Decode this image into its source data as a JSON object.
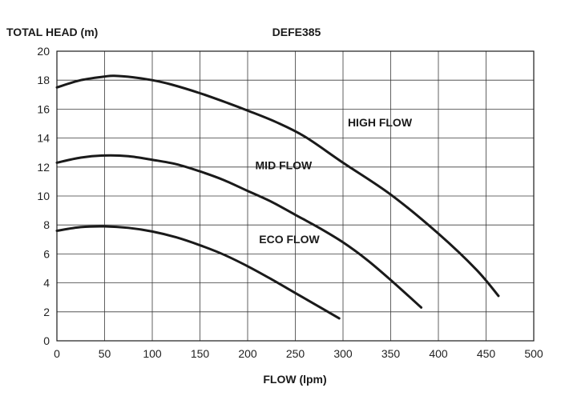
{
  "chart_data": {
    "type": "line",
    "title": "DEFE385",
    "xlabel": "FLOW (lpm)",
    "ylabel": "TOTAL HEAD (m)",
    "xlim": [
      0,
      500
    ],
    "ylim": [
      0,
      20
    ],
    "xticks": [
      0,
      50,
      100,
      150,
      200,
      250,
      300,
      350,
      400,
      450,
      500
    ],
    "yticks": [
      0,
      2,
      4,
      6,
      8,
      10,
      12,
      14,
      16,
      18,
      20
    ],
    "grid": true,
    "colors": {
      "curve": "#1a1a1a",
      "grid": "#3a3a3a"
    },
    "series": [
      {
        "name": "HIGH FLOW",
        "x": [
          0,
          25,
          50,
          60,
          80,
          100,
          120,
          150,
          180,
          200,
          230,
          260,
          300,
          350,
          400,
          440,
          463
        ],
        "y": [
          17.5,
          18.0,
          18.25,
          18.3,
          18.2,
          18.0,
          17.7,
          17.1,
          16.4,
          15.9,
          15.1,
          14.1,
          12.3,
          10.1,
          7.4,
          4.9,
          3.1
        ]
      },
      {
        "name": "MID FLOW",
        "x": [
          0,
          25,
          50,
          75,
          100,
          125,
          150,
          175,
          200,
          225,
          250,
          275,
          300,
          325,
          350,
          382
        ],
        "y": [
          12.3,
          12.65,
          12.8,
          12.75,
          12.5,
          12.2,
          11.7,
          11.1,
          10.35,
          9.6,
          8.7,
          7.8,
          6.8,
          5.6,
          4.2,
          2.3
        ]
      },
      {
        "name": "ECO FLOW",
        "x": [
          0,
          25,
          50,
          75,
          100,
          125,
          150,
          175,
          200,
          225,
          250,
          275,
          296
        ],
        "y": [
          7.6,
          7.85,
          7.9,
          7.8,
          7.55,
          7.15,
          6.6,
          5.95,
          5.15,
          4.25,
          3.3,
          2.35,
          1.55
        ]
      }
    ],
    "annotations": [
      {
        "text": "HIGH FLOW",
        "series": "HIGH FLOW",
        "x": 305,
        "y": 14.8
      },
      {
        "text": "MID FLOW",
        "series": "MID FLOW",
        "x": 208,
        "y": 11.85
      },
      {
        "text": "ECO FLOW",
        "series": "ECO FLOW",
        "x": 212,
        "y": 6.75
      }
    ]
  }
}
